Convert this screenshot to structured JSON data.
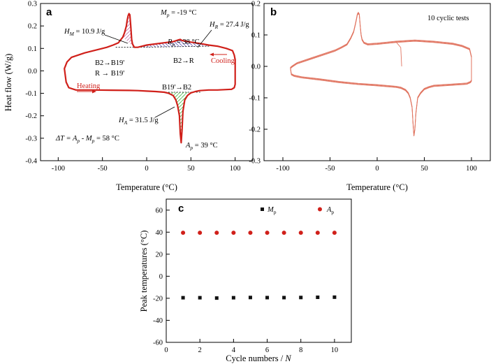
{
  "chart_data": [
    {
      "id": "a",
      "panel_label": "a",
      "type": "line",
      "xlabel": "Temperature (°C)",
      "ylabel": "Heat flow (W/g)",
      "xlim": [
        -120,
        120
      ],
      "ylim": [
        -0.4,
        0.3
      ],
      "xticks": [
        -100,
        -50,
        0,
        50,
        100
      ],
      "yticks": [
        -0.4,
        -0.3,
        -0.2,
        -0.1,
        0.0,
        0.1,
        0.2,
        0.3
      ],
      "xtick_labels": [
        "-100",
        "-50",
        "0",
        "50",
        "100"
      ],
      "ytick_labels": [
        "-0.4",
        "-0.3",
        "-0.2",
        "-0.1",
        "0.0",
        "0.1",
        "0.2",
        "0.3"
      ],
      "colors": {
        "curve": "#d0201a",
        "hatch_m": "#c26ba8",
        "hatch_r": "#5b4fb0",
        "hatch_a": "#3fb83f",
        "arrow": "#d0201a"
      },
      "series": [
        {
          "x": [
            -93,
            -91,
            -90,
            -85,
            -70,
            -50,
            -45,
            -38,
            -32,
            -27,
            -25,
            -23,
            -22,
            -21,
            -20,
            -19,
            -18,
            -17,
            -16,
            -14,
            -10,
            -5,
            0,
            10,
            20,
            30,
            36,
            38,
            40,
            50,
            60,
            70,
            80,
            90,
            97,
            99,
            100,
            100,
            99,
            96,
            80,
            70,
            60,
            55,
            50,
            46,
            43,
            41,
            40,
            39,
            38,
            37,
            35,
            33,
            30,
            25,
            20,
            10,
            0,
            -10,
            -20,
            -40,
            -60,
            -80,
            -88,
            -91,
            -93
          ],
          "y": [
            0.01,
            0.03,
            0.04,
            0.06,
            0.08,
            0.1,
            0.105,
            0.115,
            0.125,
            0.15,
            0.17,
            0.2,
            0.225,
            0.245,
            0.255,
            0.25,
            0.2,
            0.14,
            0.12,
            0.105,
            0.105,
            0.11,
            0.115,
            0.12,
            0.125,
            0.13,
            0.138,
            0.14,
            0.135,
            0.128,
            0.122,
            0.115,
            0.11,
            0.1,
            0.09,
            0.07,
            0.05,
            -0.06,
            -0.075,
            -0.082,
            -0.085,
            -0.085,
            -0.088,
            -0.092,
            -0.098,
            -0.11,
            -0.13,
            -0.18,
            -0.26,
            -0.32,
            -0.28,
            -0.2,
            -0.155,
            -0.13,
            -0.11,
            -0.1,
            -0.095,
            -0.092,
            -0.09,
            -0.088,
            -0.087,
            -0.086,
            -0.085,
            -0.085,
            -0.075,
            -0.05,
            0.01
          ]
        }
      ],
      "annotations": {
        "hm": "H",
        "hm_sub": "M",
        "hm_val": " = 10.9 J/g",
        "mp": "M",
        "mp_sub": "p",
        "mp_val": " = -19 °C",
        "hr": "H",
        "hr_sub": "R",
        "hr_val": " = 27.4 J/g",
        "rp": "R",
        "rp_sub": "p",
        "rp_val": " = 38 °C",
        "b2b19": "B2→B19'",
        "rb19": "R → B19'",
        "b2r": "B2→R",
        "cooling": "Cooling",
        "heating": "Heating",
        "b19b2": "B19'→B2",
        "ha": "H",
        "ha_sub": "A",
        "ha_val": " = 31.5 J/g",
        "ap": "A",
        "ap_sub": "p",
        "ap_val": " = 39 °C",
        "dt_pre": "ΔT = ",
        "dt_a": "A",
        "dt_asub": "p",
        "dt_mid": " - ",
        "dt_m": "M",
        "dt_msub": "p",
        "dt_val": " = 58 °C"
      }
    },
    {
      "id": "b",
      "panel_label": "b",
      "type": "line",
      "xlabel": "Temperature (°C)",
      "ylabel": "",
      "xlim": [
        -120,
        120
      ],
      "ylim": [
        -0.3,
        0.2
      ],
      "xticks": [
        -100,
        -50,
        0,
        50,
        100
      ],
      "yticks": [
        -0.3,
        -0.2,
        -0.1,
        0.0,
        0.1,
        0.2
      ],
      "xtick_labels": [
        "-100",
        "-50",
        "0",
        "50",
        "100"
      ],
      "ytick_labels": [
        "-0.3",
        "-0.2",
        "-0.1",
        "0.0",
        "0.1",
        "0.2"
      ],
      "legend_text": "10 cyclic tests",
      "colors": {
        "curve": "#e0735f"
      },
      "series": [
        {
          "name": "10 cyclic tests",
          "x": [
            -92,
            -90,
            -85,
            -70,
            -55,
            -45,
            -38,
            -32,
            -28,
            -25,
            -23,
            -22,
            -21,
            -20,
            -19,
            -18,
            -17,
            -16,
            -14,
            -10,
            0,
            10,
            20,
            30,
            40,
            50,
            60,
            70,
            80,
            90,
            98,
            100,
            100,
            99,
            95,
            80,
            70,
            60,
            55,
            50,
            46,
            43,
            41,
            40,
            39,
            38,
            37,
            35,
            33,
            30,
            25,
            20,
            0,
            -20,
            -40,
            -60,
            -80,
            -88,
            -91,
            -92
          ],
          "y": [
            -0.005,
            0.0,
            0.01,
            0.025,
            0.04,
            0.05,
            0.06,
            0.07,
            0.09,
            0.11,
            0.135,
            0.15,
            0.165,
            0.17,
            0.165,
            0.13,
            0.1,
            0.085,
            0.075,
            0.07,
            0.072,
            0.075,
            0.078,
            0.08,
            0.082,
            0.08,
            0.078,
            0.075,
            0.072,
            0.065,
            0.055,
            0.03,
            -0.045,
            -0.05,
            -0.055,
            -0.058,
            -0.06,
            -0.062,
            -0.066,
            -0.072,
            -0.085,
            -0.1,
            -0.15,
            -0.2,
            -0.22,
            -0.18,
            -0.13,
            -0.1,
            -0.085,
            -0.075,
            -0.068,
            -0.065,
            -0.06,
            -0.056,
            -0.05,
            -0.042,
            -0.035,
            -0.03,
            -0.025,
            -0.005
          ]
        }
      ]
    },
    {
      "id": "c",
      "panel_label": "c",
      "type": "scatter",
      "xlabel": "Cycle numbers / N",
      "xlabel_pre": "Cycle numbers / ",
      "xlabel_n": "N",
      "ylabel": "Peak temperatures (°C)",
      "xlim": [
        0,
        11
      ],
      "ylim": [
        -60,
        70
      ],
      "xticks": [
        0,
        2,
        4,
        6,
        8,
        10
      ],
      "yticks": [
        -60,
        -40,
        -20,
        0,
        20,
        40,
        60
      ],
      "xtick_labels": [
        "0",
        "2",
        "4",
        "6",
        "8",
        "10"
      ],
      "ytick_labels": [
        "-60",
        "-40",
        "-20",
        "0",
        "20",
        "40",
        "60"
      ],
      "colors": {
        "mp": "#111111",
        "ap": "#d0201a"
      },
      "series": [
        {
          "name": "Mp",
          "legend_main": "M",
          "legend_sub": "p",
          "marker": "square",
          "x": [
            1,
            2,
            3,
            4,
            5,
            6,
            7,
            8,
            9,
            10
          ],
          "y": [
            -19.5,
            -19.5,
            -19.8,
            -19.5,
            -19.3,
            -19.4,
            -19.4,
            -19.3,
            -19.1,
            -19.0
          ]
        },
        {
          "name": "Ap",
          "legend_main": "A",
          "legend_sub": "p",
          "marker": "circle",
          "x": [
            1,
            2,
            3,
            4,
            5,
            6,
            7,
            8,
            9,
            10
          ],
          "y": [
            39.5,
            39.5,
            39.5,
            39.5,
            39.5,
            39.5,
            39.5,
            39.5,
            39.5,
            39.5
          ]
        }
      ]
    }
  ]
}
